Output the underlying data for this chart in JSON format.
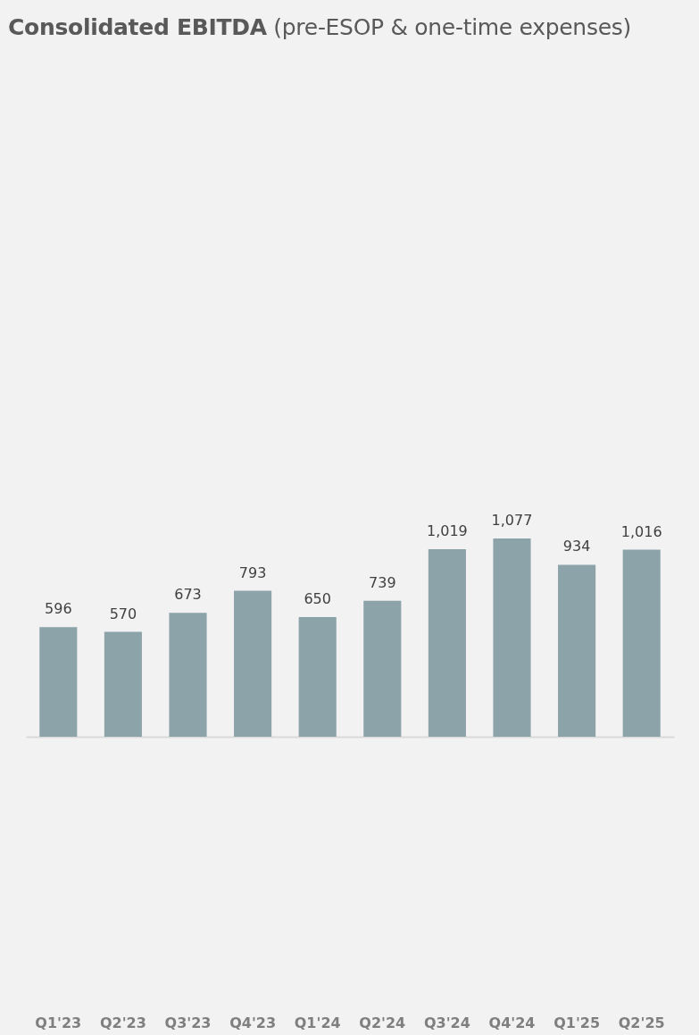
{
  "chart_data": {
    "type": "bar",
    "title": "Consolidated EBITDA",
    "subtitle": "(pre-ESOP & one-time expenses)",
    "categories": [
      "Q1'23",
      "Q2'23",
      "Q3'23",
      "Q4'23",
      "Q1'24",
      "Q2'24",
      "Q3'24",
      "Q4'24",
      "Q1'25",
      "Q2'25"
    ],
    "values": [
      596,
      570,
      673,
      793,
      650,
      739,
      1019,
      1077,
      934,
      1016
    ],
    "value_labels": [
      "596",
      "570",
      "673",
      "793",
      "650",
      "739",
      "1,019",
      "1,077",
      "934",
      "1,016"
    ],
    "color": "#8ca3a9"
  }
}
